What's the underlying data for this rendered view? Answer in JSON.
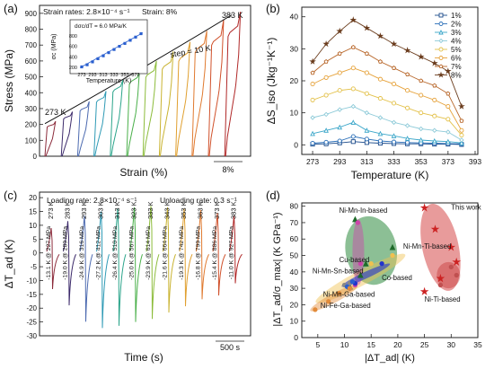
{
  "chart_data": [
    {
      "panel": "(a)",
      "type": "line",
      "xlabel": "Strain (%)",
      "ylabel": "Stress (MPa)",
      "yticks": [
        0,
        100,
        200,
        300,
        400,
        500,
        600,
        700,
        800,
        900
      ],
      "ylim": [
        0,
        950
      ],
      "scale_bar": "8%",
      "annotations": [
        "Strain rates: 2.8×10⁻⁴ s⁻¹",
        "Strain: 8%",
        "273 K",
        "383 K",
        "step = 10 K"
      ],
      "temperatures_K": [
        273,
        283,
        293,
        303,
        313,
        323,
        333,
        343,
        353,
        363,
        373,
        383
      ],
      "peak_stress_MPa": [
        220,
        280,
        345,
        410,
        480,
        550,
        600,
        660,
        720,
        790,
        860,
        910
      ],
      "plateau_stress_MPa": [
        200,
        255,
        310,
        370,
        440,
        495,
        540,
        595,
        650,
        710,
        760,
        820
      ],
      "inset": {
        "equation": "dσc/dT = 6.0 MPa/K",
        "ylabel": "σc (MPa)",
        "xlabel": "Temperature (K)",
        "xticks": [
          273,
          293,
          313,
          333,
          353,
          373
        ],
        "yticks": [
          200,
          400,
          600,
          800
        ],
        "x": [
          273,
          283,
          293,
          303,
          313,
          323,
          333,
          343,
          353,
          363,
          373,
          383
        ],
        "y": [
          210,
          250,
          305,
          365,
          420,
          480,
          540,
          600,
          655,
          715,
          775,
          840
        ]
      }
    },
    {
      "panel": "(b)",
      "type": "line",
      "xlabel": "Temperature (K)",
      "ylabel": "ΔS_iso (Jkg⁻¹K⁻¹)",
      "xticks": [
        273,
        293,
        313,
        333,
        353,
        373,
        393
      ],
      "yticks": [
        0,
        10,
        20,
        30,
        40
      ],
      "xlim": [
        265,
        395
      ],
      "ylim": [
        -3,
        43
      ],
      "x": [
        273,
        283,
        293,
        303,
        313,
        323,
        333,
        343,
        353,
        363,
        373,
        383
      ],
      "series": [
        {
          "name": "1%",
          "color": "#1a4a8a",
          "marker": "square",
          "values": [
            0.2,
            0.3,
            0.6,
            1.0,
            0.7,
            0.5,
            0.4,
            0.3,
            0.3,
            0.2,
            0.2,
            0.1
          ]
        },
        {
          "name": "2%",
          "color": "#2b6fb8",
          "marker": "circle",
          "values": [
            0.5,
            0.8,
            1.2,
            2.6,
            1.8,
            1.2,
            0.9,
            0.7,
            0.6,
            0.5,
            0.4,
            0.3
          ]
        },
        {
          "name": "3%",
          "color": "#3aa6c9",
          "marker": "triangle",
          "values": [
            3.5,
            4.5,
            5.5,
            7.0,
            4.5,
            3.5,
            2.8,
            2.0,
            1.5,
            1.2,
            1.0,
            0.6
          ]
        },
        {
          "name": "4%",
          "color": "#8fcbd9",
          "marker": "diamond",
          "values": [
            8.5,
            9.5,
            11.0,
            12.0,
            10.0,
            8.5,
            7.0,
            6.0,
            5.0,
            4.5,
            4.0,
            1.5
          ]
        },
        {
          "name": "5%",
          "color": "#e3c14a",
          "marker": "circle",
          "values": [
            14.0,
            15.5,
            17.0,
            17.5,
            16.0,
            14.5,
            13.0,
            11.5,
            10.0,
            9.0,
            8.0,
            3.0
          ]
        },
        {
          "name": "6%",
          "color": "#e6a23a",
          "marker": "circle",
          "values": [
            19.0,
            21.0,
            22.5,
            24.0,
            22.5,
            20.5,
            19.0,
            17.0,
            15.5,
            14.0,
            12.0,
            4.5
          ]
        },
        {
          "name": "7%",
          "color": "#b8672a",
          "marker": "pentagon",
          "values": [
            22.5,
            26.0,
            28.5,
            30.5,
            28.5,
            26.0,
            24.0,
            22.0,
            20.0,
            18.5,
            16.0,
            7.5
          ]
        },
        {
          "name": "8%",
          "color": "#6b3d1e",
          "marker": "star",
          "values": [
            26.0,
            31.5,
            35.5,
            39.0,
            36.5,
            34.0,
            31.5,
            29.5,
            27.5,
            25.5,
            23.0,
            12.0
          ]
        }
      ],
      "legend_position": "top-right"
    },
    {
      "panel": "(c)",
      "type": "line",
      "xlabel": "Time (s)",
      "ylabel": "ΔT_ad (K)",
      "yticks": [
        -30,
        -25,
        -20,
        -15,
        -10,
        -5,
        0,
        5,
        10,
        15,
        20
      ],
      "ylim": [
        -30,
        22
      ],
      "scale_bar": "500 s",
      "annotations": [
        "Loading rate: 2.8×10⁻⁴ s⁻¹",
        "Unloading rate: 0.3 s⁻¹"
      ],
      "temperature_labels": [
        "273 K",
        "283 K",
        "293 K",
        "303 K",
        "313 K",
        "323 K",
        "333 K",
        "343 K",
        "353 K",
        "363 K",
        "373 K",
        "383 K"
      ],
      "peak_deltaT_K": [
        9.0,
        11.5,
        13.5,
        15.0,
        16.0,
        16.5,
        17.0,
        16.5,
        16.0,
        15.5,
        14.5,
        13.5
      ],
      "min_deltaT_K": [
        -13.1,
        -19.0,
        -24.9,
        -27.2,
        -26.4,
        -25.0,
        -23.9,
        -21.6,
        -19.3,
        -16.8,
        -15.4,
        -11.0
      ],
      "min_labels": [
        "-13.1 K @ 227 MPa",
        "-19.0 K @ 289 MPa",
        "-24.9 K @ 316 MPa",
        "-27.2 K @ 412 MPa",
        "-26.4 K @ 510 MPa",
        "-25.0 K @ 567 MPa",
        "-23.9 K @ 614 MPa",
        "-21.6 K @ 664 MPa",
        "-19.3 K @ 742 MPa",
        "-16.8 K @ 799 MPa",
        "-15.4 K @ 886 MPa",
        "-11.0 K @ 927 MPa"
      ]
    },
    {
      "panel": "(d)",
      "type": "scatter",
      "xlabel": "|ΔT_ad| (K)",
      "ylabel": "|ΔT_ad/σ_max| (K GPa⁻¹)",
      "xticks": [
        0,
        5,
        10,
        15,
        20,
        25,
        30,
        35
      ],
      "yticks": [
        0,
        10,
        20,
        30,
        40,
        50,
        60,
        70,
        80
      ],
      "xlim": [
        2,
        35
      ],
      "ylim": [
        0,
        82
      ],
      "groups": [
        {
          "name": "Ni-Mn-In-based",
          "color": "#2e8b3e",
          "points": [
            [
              12,
              72
            ],
            [
              19,
              55
            ],
            [
              13,
              38
            ],
            [
              14,
              45
            ],
            [
              11,
              31
            ]
          ]
        },
        {
          "name": "Ni-Mn-Ti-based",
          "color": "#f0c050",
          "points": [
            [
              19,
              50
            ],
            [
              15,
              45
            ],
            [
              12,
              32
            ],
            [
              11,
              30
            ]
          ]
        },
        {
          "name": "Cu-based",
          "color": "#cc44aa",
          "points": [
            [
              12.5,
              70
            ],
            [
              13,
              45
            ],
            [
              12,
              32
            ]
          ]
        },
        {
          "name": "Ni-Mn-Sn-based",
          "color": "#888888",
          "points": [
            [
              10,
              32
            ],
            [
              11,
              33
            ]
          ]
        },
        {
          "name": "Co-based",
          "color": "#2233cc",
          "points": [
            [
              17,
              45
            ],
            [
              12,
              33
            ],
            [
              11,
              30
            ]
          ]
        },
        {
          "name": "Ni-Mn-Ga-based",
          "color": "#2a5fcf",
          "points": [
            [
              10.5,
              31
            ],
            [
              11.5,
              34
            ]
          ]
        },
        {
          "name": "Ni-Fe-Ga-based",
          "color": "#e28b3a",
          "points": [
            [
              4.5,
              17
            ],
            [
              7,
              22
            ],
            [
              9,
              27
            ],
            [
              11,
              30
            ]
          ]
        },
        {
          "name": "Ni-Ti-based",
          "color": "#c05050",
          "points": [
            [
              30,
              43
            ],
            [
              28,
              32
            ],
            [
              31,
              38
            ]
          ]
        },
        {
          "name": "This work",
          "color": "#cc2222",
          "points": [
            [
              25,
              79
            ],
            [
              27,
              66
            ],
            [
              30,
              55
            ],
            [
              31,
              46
            ],
            [
              28,
              36
            ],
            [
              25,
              28
            ]
          ]
        }
      ]
    }
  ]
}
